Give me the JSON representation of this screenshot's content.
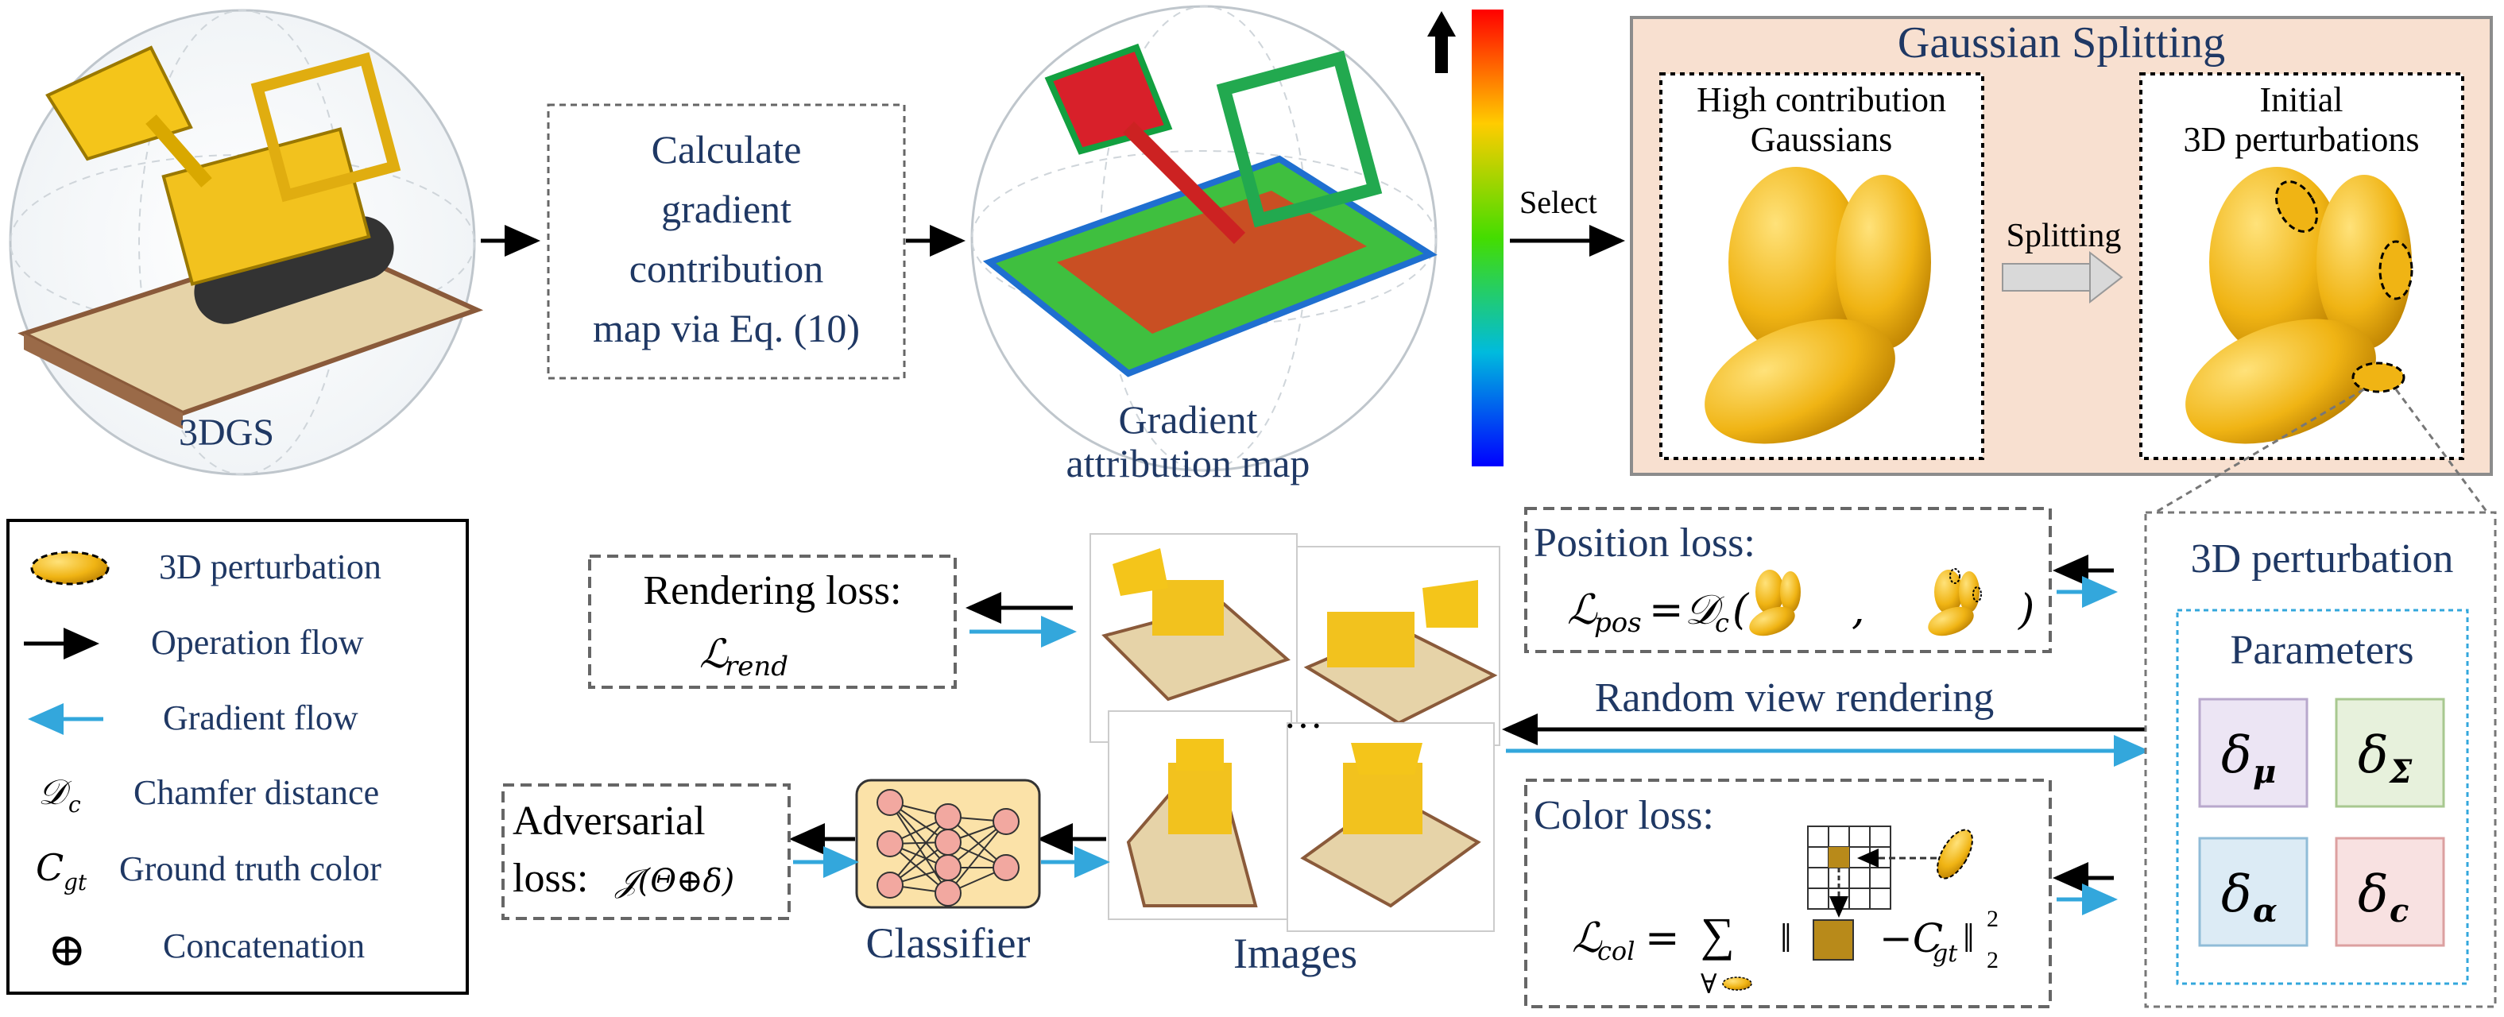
{
  "colors": {
    "text": "#1f3864",
    "splitting_bg": "#f8e0d0",
    "gaussian": "#e8aa0a",
    "gradient_arrow": "#33a7dc",
    "operation_arrow": "#000000",
    "dashed_params": "#33a7dc",
    "delta_mu_bg": "#ece5f4",
    "delta_sigma_bg": "#e7f1dc",
    "delta_alpha_bg": "#dcebf5",
    "delta_c_bg": "#f8e1e1"
  },
  "labels": {
    "model_3dgs": "3DGS",
    "calc_map": [
      "Calculate",
      "gradient",
      "contribution",
      "map via Eq. (10)"
    ],
    "gradient_map": [
      "Gradient",
      "attribution map"
    ],
    "colorbar_up_icon": "up-arrow-icon",
    "select": "Select",
    "gaussian_splitting": "Gaussian Splitting",
    "high_contribution": [
      "High contribution",
      "Gaussians"
    ],
    "splitting": "Splitting",
    "initial_perturbations": [
      "Initial",
      "3D perturbations"
    ],
    "perturbation_3d": "3D perturbation",
    "parameters": "Parameters",
    "delta_mu": "δ",
    "delta_mu_sub": "μ",
    "delta_sigma": "δ",
    "delta_sigma_sub": "Σ",
    "delta_alpha": "δ",
    "delta_alpha_sub": "α",
    "delta_c": "δ",
    "delta_c_sub": "c",
    "position_loss": "Position loss:",
    "pos_lhs": "ℒ",
    "pos_lhs_sub": "pos",
    "pos_eq": "= ",
    "pos_dc": "𝒟",
    "pos_dc_sub": "c",
    "pos_open": "(",
    "pos_comma": ",",
    "pos_close": ")",
    "random_view": "Random view rendering",
    "color_loss": "Color loss:",
    "col_lhs": "ℒ",
    "col_lhs_sub": "col",
    "col_eq": "=",
    "col_sum": "∑",
    "col_forall": "∀",
    "col_norm_open": "‖",
    "col_minus": "−C",
    "col_gt_sub": "gt",
    "col_norm_close": "‖",
    "col_sup": "2",
    "col_sub": "2",
    "rendering_loss": "Rendering loss:",
    "rend_lhs": "ℒ",
    "rend_sub": "rend",
    "adversarial": "Adversarial",
    "adv_loss": "loss:",
    "adv_expr": "𝒥(Θ⊕δ)",
    "classifier": "Classifier",
    "images": "Images",
    "ellipsis": "···"
  },
  "legend": [
    {
      "icon": "perturbation-ellipse-icon",
      "label": "3D perturbation"
    },
    {
      "icon": "black-arrow-icon",
      "label": "Operation flow"
    },
    {
      "icon": "blue-arrow-icon",
      "label": "Gradient flow"
    },
    {
      "symbol": "𝒟",
      "symbol_sub": "c",
      "label": "Chamfer distance"
    },
    {
      "symbol": "C",
      "symbol_sub": "gt",
      "label": "Ground truth color"
    },
    {
      "symbol": "⊕",
      "label": "Concatenation"
    }
  ]
}
